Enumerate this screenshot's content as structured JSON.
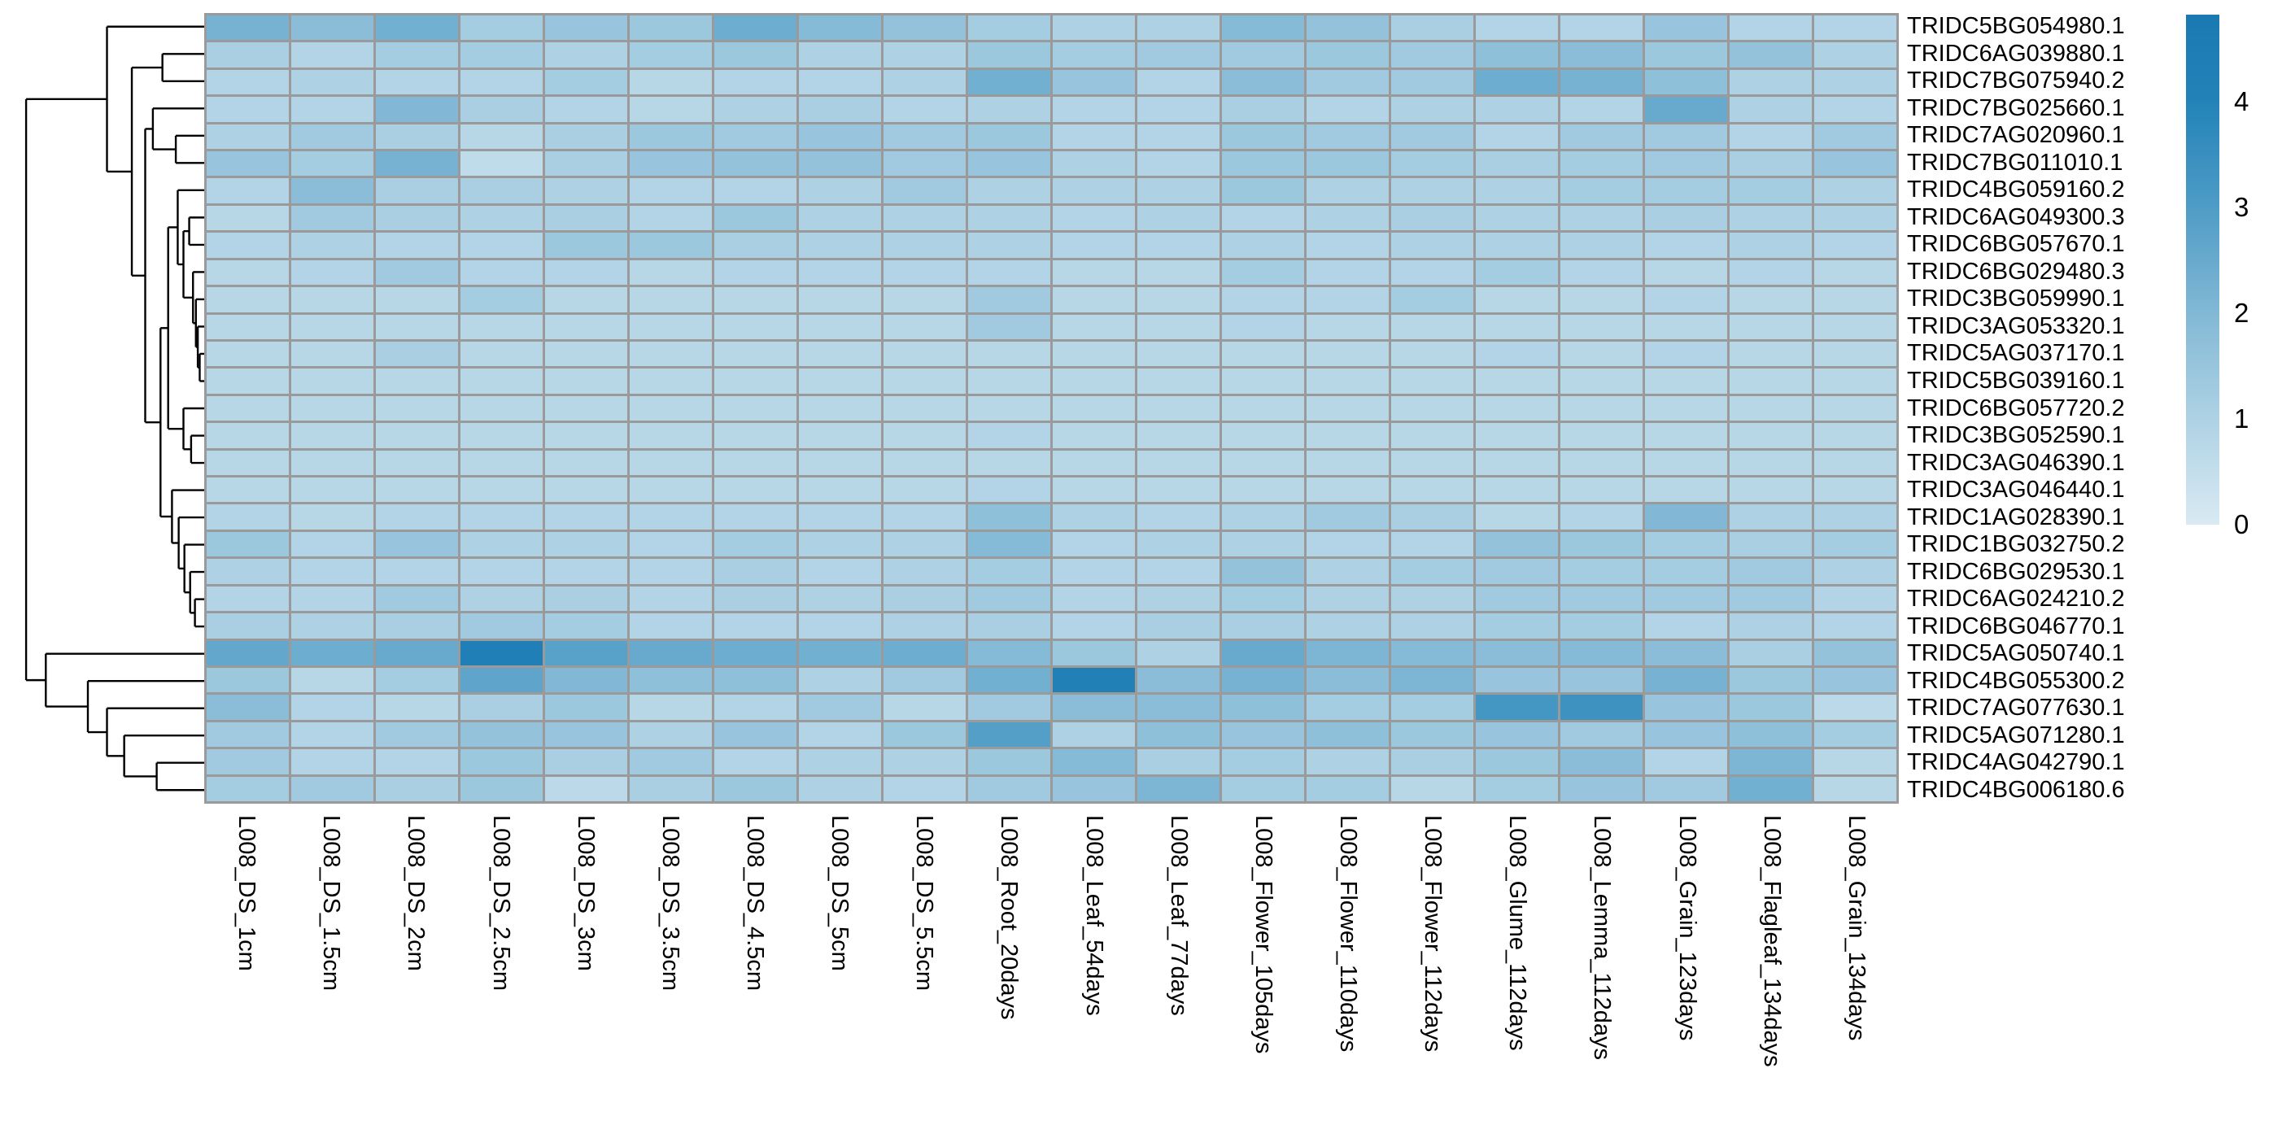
{
  "chart_data": {
    "type": "heatmap",
    "title": "",
    "rows": [
      "TRIDC5BG054980.1",
      "TRIDC6AG039880.1",
      "TRIDC7BG075940.2",
      "TRIDC7BG025660.1",
      "TRIDC7AG020960.1",
      "TRIDC7BG011010.1",
      "TRIDC4BG059160.2",
      "TRIDC6AG049300.3",
      "TRIDC6BG057670.1",
      "TRIDC6BG029480.3",
      "TRIDC3BG059990.1",
      "TRIDC3AG053320.1",
      "TRIDC5AG037170.1",
      "TRIDC5BG039160.1",
      "TRIDC6BG057720.2",
      "TRIDC3BG052590.1",
      "TRIDC3AG046390.1",
      "TRIDC3AG046440.1",
      "TRIDC1AG028390.1",
      "TRIDC1BG032750.2",
      "TRIDC6BG029530.1",
      "TRIDC6AG024210.2",
      "TRIDC6BG046770.1",
      "TRIDC5AG050740.1",
      "TRIDC4BG055300.2",
      "TRIDC7AG077630.1",
      "TRIDC5AG071280.1",
      "TRIDC4AG042790.1",
      "TRIDC4BG006180.6"
    ],
    "columns": [
      "L008_DS_1cm",
      "L008_DS_1.5cm",
      "L008_DS_2cm",
      "L008_DS_2.5cm",
      "L008_DS_3cm",
      "L008_DS_3.5cm",
      "L008_DS_4.5cm",
      "L008_DS_5cm",
      "L008_DS_5.5cm",
      "L008_Root_20days",
      "L008_Leaf_54days",
      "L008_Leaf_77days",
      "L008_Flower_105days",
      "L008_Flower_110days",
      "L008_Flower_112days",
      "L008_Glume_112days",
      "L008_Lemma_112days",
      "L008_Grain_123days",
      "L008_Flagleaf_134days",
      "L008_Grain_134days"
    ],
    "values": [
      [
        2.2,
        1.8,
        2.3,
        1.2,
        1.5,
        1.4,
        2.4,
        1.9,
        1.6,
        1.2,
        1.0,
        1.0,
        1.9,
        1.6,
        1.1,
        0.9,
        0.9,
        1.5,
        0.9,
        0.9
      ],
      [
        1.1,
        0.9,
        1.2,
        1.2,
        1.0,
        1.2,
        1.4,
        1.0,
        1.0,
        1.4,
        1.2,
        1.3,
        1.3,
        1.4,
        1.3,
        1.7,
        1.8,
        1.4,
        1.6,
        1.0
      ],
      [
        0.9,
        1.0,
        0.9,
        0.9,
        1.2,
        0.8,
        0.9,
        0.9,
        1.0,
        2.3,
        1.5,
        0.9,
        1.8,
        1.3,
        1.3,
        2.4,
        2.2,
        1.7,
        1.0,
        1.0
      ],
      [
        0.9,
        0.9,
        2.0,
        1.1,
        0.9,
        0.8,
        1.0,
        1.1,
        0.9,
        1.0,
        0.9,
        0.9,
        1.1,
        0.9,
        1.0,
        1.0,
        0.9,
        2.5,
        1.0,
        0.9
      ],
      [
        1.0,
        1.3,
        1.1,
        0.8,
        1.1,
        1.4,
        1.3,
        1.5,
        1.3,
        1.4,
        0.9,
        0.9,
        1.4,
        1.3,
        1.3,
        0.9,
        1.3,
        1.3,
        0.9,
        1.3
      ],
      [
        1.5,
        1.2,
        2.2,
        0.6,
        1.1,
        1.5,
        1.6,
        1.6,
        1.3,
        1.5,
        1.0,
        0.9,
        1.4,
        1.4,
        1.2,
        1.1,
        1.2,
        1.3,
        1.1,
        1.5
      ],
      [
        0.9,
        1.8,
        1.1,
        1.1,
        1.0,
        0.9,
        0.9,
        1.0,
        1.3,
        1.0,
        1.0,
        1.0,
        1.4,
        1.0,
        1.0,
        1.0,
        1.2,
        1.2,
        1.2,
        1.0
      ],
      [
        0.8,
        1.3,
        1.1,
        1.0,
        1.1,
        0.9,
        1.4,
        1.0,
        1.0,
        1.0,
        0.9,
        1.0,
        0.9,
        1.0,
        1.1,
        1.0,
        1.0,
        1.1,
        1.0,
        1.0
      ],
      [
        0.9,
        1.0,
        0.9,
        0.9,
        1.4,
        1.4,
        1.1,
        1.0,
        1.0,
        1.0,
        0.9,
        0.9,
        1.0,
        0.9,
        1.0,
        1.0,
        1.0,
        0.9,
        1.0,
        0.9
      ],
      [
        0.8,
        0.9,
        1.3,
        0.9,
        0.9,
        0.8,
        0.9,
        0.9,
        0.9,
        0.9,
        0.8,
        0.8,
        1.2,
        0.9,
        0.9,
        1.2,
        0.9,
        0.8,
        0.9,
        0.8
      ],
      [
        0.8,
        0.8,
        0.8,
        1.2,
        0.8,
        0.8,
        0.8,
        0.8,
        0.8,
        1.3,
        0.8,
        0.8,
        0.9,
        0.9,
        1.2,
        0.8,
        0.8,
        0.9,
        0.8,
        0.8
      ],
      [
        0.8,
        0.8,
        0.8,
        0.8,
        0.8,
        0.8,
        0.8,
        0.8,
        0.8,
        1.3,
        0.8,
        0.8,
        0.9,
        0.8,
        0.8,
        0.8,
        0.8,
        0.8,
        0.8,
        0.8
      ],
      [
        0.8,
        0.8,
        1.1,
        0.8,
        0.8,
        0.8,
        0.8,
        0.8,
        0.8,
        0.8,
        0.8,
        0.8,
        0.8,
        0.8,
        0.8,
        0.9,
        0.8,
        0.9,
        0.8,
        0.8
      ],
      [
        0.8,
        0.8,
        0.8,
        0.8,
        0.8,
        0.8,
        0.8,
        0.8,
        0.8,
        0.8,
        0.8,
        0.8,
        0.8,
        0.8,
        0.8,
        0.8,
        0.8,
        0.8,
        0.8,
        0.8
      ],
      [
        0.8,
        0.8,
        0.8,
        0.8,
        0.8,
        0.8,
        0.8,
        0.8,
        0.8,
        0.8,
        0.8,
        0.8,
        0.8,
        0.8,
        0.8,
        0.8,
        0.8,
        0.8,
        0.8,
        0.8
      ],
      [
        0.8,
        0.8,
        0.8,
        0.8,
        0.8,
        0.8,
        0.8,
        0.8,
        0.8,
        0.9,
        0.8,
        0.8,
        0.8,
        0.8,
        0.8,
        0.8,
        0.8,
        0.8,
        0.8,
        0.8
      ],
      [
        0.8,
        0.8,
        0.8,
        0.8,
        0.8,
        0.8,
        0.8,
        0.8,
        0.8,
        0.8,
        0.8,
        0.8,
        0.8,
        0.8,
        0.8,
        0.8,
        0.8,
        0.8,
        0.8,
        0.8
      ],
      [
        0.8,
        0.8,
        0.8,
        0.8,
        0.8,
        0.8,
        0.8,
        0.8,
        0.8,
        0.9,
        0.8,
        0.8,
        0.8,
        0.8,
        0.8,
        0.8,
        0.8,
        0.8,
        0.8,
        0.8
      ],
      [
        0.9,
        0.8,
        0.9,
        0.9,
        0.9,
        0.9,
        0.9,
        0.9,
        0.9,
        1.7,
        1.0,
        0.9,
        1.0,
        1.3,
        1.1,
        0.8,
        0.9,
        2.0,
        1.0,
        1.0
      ],
      [
        1.4,
        0.9,
        1.5,
        1.0,
        1.0,
        0.9,
        1.2,
        1.0,
        1.0,
        1.9,
        0.9,
        1.0,
        1.0,
        0.9,
        0.9,
        1.6,
        1.4,
        1.2,
        1.1,
        1.2
      ],
      [
        1.0,
        0.9,
        0.9,
        0.9,
        0.9,
        0.9,
        1.1,
        0.9,
        1.0,
        1.2,
        0.9,
        0.9,
        1.6,
        1.0,
        1.2,
        1.3,
        1.2,
        1.2,
        1.3,
        1.0
      ],
      [
        0.9,
        0.9,
        1.3,
        1.0,
        1.1,
        0.9,
        1.1,
        1.0,
        1.1,
        1.3,
        0.9,
        1.0,
        1.2,
        1.0,
        1.0,
        1.3,
        1.3,
        1.3,
        1.3,
        0.9
      ],
      [
        1.1,
        1.0,
        1.1,
        1.3,
        1.2,
        0.9,
        0.9,
        0.9,
        1.0,
        1.1,
        0.9,
        1.1,
        1.1,
        1.0,
        1.0,
        1.2,
        1.2,
        0.9,
        1.0,
        0.9
      ],
      [
        2.6,
        2.4,
        2.5,
        4.3,
        2.8,
        2.5,
        2.4,
        2.3,
        2.4,
        1.9,
        1.4,
        1.0,
        2.5,
        2.1,
        1.9,
        1.8,
        1.9,
        1.8,
        1.1,
        1.6
      ],
      [
        1.4,
        0.8,
        1.2,
        2.7,
        2.0,
        1.7,
        1.7,
        1.0,
        1.3,
        2.3,
        4.2,
        1.8,
        2.2,
        1.8,
        2.1,
        1.5,
        1.5,
        2.2,
        1.4,
        1.5
      ],
      [
        1.8,
        0.9,
        0.8,
        1.1,
        1.4,
        0.8,
        0.9,
        1.3,
        0.8,
        1.3,
        1.8,
        1.8,
        1.7,
        1.2,
        1.2,
        3.2,
        3.4,
        1.5,
        1.4,
        0.7
      ],
      [
        1.3,
        0.9,
        1.3,
        1.6,
        1.5,
        1.0,
        1.5,
        0.9,
        1.4,
        2.9,
        1.0,
        1.7,
        1.5,
        1.7,
        1.4,
        1.5,
        1.3,
        1.5,
        1.7,
        1.2
      ],
      [
        1.3,
        0.9,
        0.9,
        1.4,
        1.1,
        1.3,
        0.9,
        1.0,
        1.0,
        1.4,
        1.9,
        1.1,
        1.2,
        1.0,
        1.1,
        1.4,
        1.8,
        0.9,
        2.1,
        0.8
      ],
      [
        1.2,
        1.3,
        1.1,
        1.4,
        0.7,
        1.1,
        1.4,
        1.0,
        0.9,
        1.3,
        1.5,
        2.1,
        1.2,
        1.2,
        0.8,
        1.2,
        1.5,
        1.3,
        2.3,
        0.8
      ]
    ],
    "colorbar": {
      "ticks": [
        "4",
        "3",
        "2",
        "1",
        "0"
      ],
      "tick_values": [
        4,
        3,
        2,
        1,
        0
      ],
      "vmin": 0,
      "vmax": 4.82,
      "color_stops": [
        {
          "v": 0.0,
          "color": "#d9eaf3"
        },
        {
          "v": 1.0,
          "color": "#aed2e4"
        },
        {
          "v": 2.0,
          "color": "#82b8d5"
        },
        {
          "v": 3.0,
          "color": "#4e9cc6"
        },
        {
          "v": 4.0,
          "color": "#2383b8"
        },
        {
          "v": 4.82,
          "color": "#1b79b2"
        }
      ],
      "position": "right"
    },
    "grid_line_color": "#9a9a9a",
    "dendrogram": {
      "side": "left",
      "line_color": "#000000",
      "tree": {
        "x": 0.077,
        "children": [
          {
            "x": 0.5,
            "children": [
              {
                "leaf": 1
              },
              {
                "x": 0.63,
                "children": [
                  {
                    "x": 0.79,
                    "children": [
                      {
                        "leaf": 2
                      },
                      {
                        "leaf": 3
                      }
                    ]
                  },
                  {
                    "x": 0.7,
                    "children": [
                      {
                        "x": 0.74,
                        "children": [
                          {
                            "leaf": 4
                          },
                          {
                            "x": 0.86,
                            "children": [
                              {
                                "leaf": 5
                              },
                              {
                                "leaf": 6
                              }
                            ]
                          }
                        ]
                      },
                      {
                        "x": 0.78,
                        "children": [
                          {
                            "x": 0.82,
                            "children": [
                              {
                                "x": 0.87,
                                "children": [
                                  {
                                    "leaf": 7
                                  },
                                  {
                                    "x": 0.9,
                                    "children": [
                                      {
                                        "x": 0.93,
                                        "children": [
                                          {
                                            "leaf": 8
                                          },
                                          {
                                            "leaf": 9
                                          }
                                        ]
                                      },
                                      {
                                        "x": 0.95,
                                        "children": [
                                          {
                                            "leaf": 10
                                          },
                                          {
                                            "x": 0.965,
                                            "children": [
                                              {
                                                "leaf": 11
                                              },
                                              {
                                                "x": 0.975,
                                                "children": [
                                                  {
                                                    "leaf": 12
                                                  },
                                                  {
                                                    "x": 0.985,
                                                    "children": [
                                                      {
                                                        "leaf": 13
                                                      },
                                                      {
                                                        "leaf": 14
                                                      }
                                                    ]
                                                  }
                                                ]
                                              }
                                            ]
                                          }
                                        ]
                                      }
                                    ]
                                  }
                                ]
                              },
                              {
                                "x": 0.9,
                                "children": [
                                  {
                                    "leaf": 15
                                  },
                                  {
                                    "x": 0.94,
                                    "children": [
                                      {
                                        "leaf": 16
                                      },
                                      {
                                        "leaf": 17
                                      }
                                    ]
                                  }
                                ]
                              }
                            ]
                          },
                          {
                            "x": 0.84,
                            "children": [
                              {
                                "leaf": 18
                              },
                              {
                                "x": 0.875,
                                "children": [
                                  {
                                    "leaf": 19
                                  },
                                  {
                                    "x": 0.905,
                                    "children": [
                                      {
                                        "leaf": 20
                                      },
                                      {
                                        "x": 0.935,
                                        "children": [
                                          {
                                            "leaf": 21
                                          },
                                          {
                                            "x": 0.96,
                                            "children": [
                                              {
                                                "leaf": 22
                                              },
                                              {
                                                "leaf": 23
                                              }
                                            ]
                                          }
                                        ]
                                      }
                                    ]
                                  }
                                ]
                              }
                            ]
                          }
                        ]
                      }
                    ]
                  }
                ]
              }
            ]
          },
          {
            "x": 0.18,
            "children": [
              {
                "leaf": 24
              },
              {
                "x": 0.4,
                "children": [
                  {
                    "leaf": 25
                  },
                  {
                    "x": 0.5,
                    "children": [
                      {
                        "leaf": 26
                      },
                      {
                        "x": 0.59,
                        "children": [
                          {
                            "leaf": 27
                          },
                          {
                            "x": 0.76,
                            "children": [
                              {
                                "leaf": 28
                              },
                              {
                                "leaf": 29
                              }
                            ]
                          }
                        ]
                      }
                    ]
                  }
                ]
              }
            ]
          }
        ]
      }
    }
  },
  "figure": {
    "background": "#ffffff",
    "text_color": "#000000"
  }
}
